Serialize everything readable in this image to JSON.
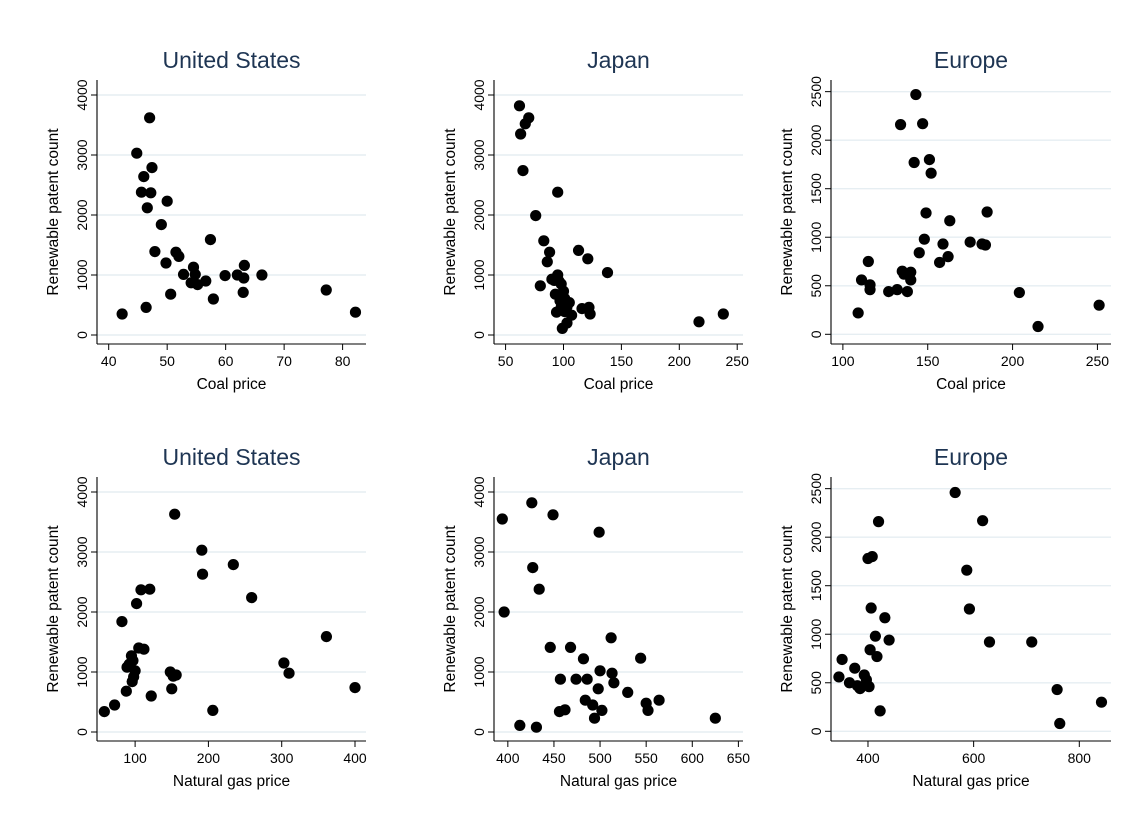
{
  "colors": {
    "background": "#ffffff",
    "title": "#1e3553",
    "gridline": "#e6eef2",
    "marker": "#000000"
  },
  "chart_data": [
    {
      "type": "scatter",
      "title": "United States",
      "xlabel": "Coal price",
      "ylabel": "Renewable patent count",
      "xlim": [
        38,
        84
      ],
      "ylim": [
        -150,
        4250
      ],
      "xticks": [
        40,
        50,
        60,
        70,
        80
      ],
      "yticks": [
        0,
        1000,
        2000,
        3000,
        4000
      ],
      "grid": true,
      "series": [
        {
          "x": [
            42.3,
            44.8,
            45.6,
            46.0,
            46.4,
            46.6,
            47.0,
            47.2,
            47.4,
            47.9,
            49.0,
            49.8,
            50.0,
            50.6,
            51.5,
            52.0,
            52.8,
            54.1,
            54.5,
            54.8,
            55.2,
            56.6,
            57.4,
            57.9,
            59.9,
            62.0,
            63.0,
            63.1,
            63.2,
            66.2,
            77.2,
            82.2
          ],
          "y": [
            350,
            3030,
            2380,
            2640,
            460,
            2120,
            3620,
            2370,
            2790,
            1390,
            1840,
            1200,
            2230,
            680,
            1380,
            1310,
            1010,
            870,
            1130,
            1010,
            840,
            900,
            1590,
            600,
            990,
            1000,
            710,
            950,
            1160,
            1000,
            750,
            380
          ]
        }
      ]
    },
    {
      "type": "scatter",
      "title": "Japan",
      "xlabel": "Coal price",
      "ylabel": "Renewable patent count",
      "xlim": [
        40,
        255
      ],
      "ylim": [
        -150,
        4250
      ],
      "xticks": [
        50,
        100,
        150,
        200,
        250
      ],
      "yticks": [
        0,
        1000,
        2000,
        3000,
        4000
      ],
      "grid": true,
      "series": [
        {
          "x": [
            62,
            63,
            65,
            67,
            70,
            76,
            80,
            83,
            86,
            88,
            90,
            92,
            93,
            94,
            95,
            95,
            96,
            97,
            98,
            98,
            99,
            100,
            101,
            101,
            103,
            103,
            105,
            107,
            113,
            116,
            121,
            122,
            123,
            138,
            217,
            238
          ],
          "y": [
            3820,
            3350,
            2740,
            3520,
            3620,
            1990,
            820,
            1570,
            1220,
            1380,
            930,
            910,
            680,
            380,
            2380,
            1000,
            900,
            570,
            460,
            850,
            110,
            730,
            610,
            390,
            200,
            470,
            540,
            330,
            1410,
            440,
            1270,
            460,
            350,
            1040,
            220,
            350
          ]
        }
      ]
    },
    {
      "type": "scatter",
      "title": "Europe",
      "xlabel": "Coal price",
      "ylabel": "Renewable patent count",
      "xlim": [
        93,
        258
      ],
      "ylim": [
        -100,
        2620
      ],
      "xticks": [
        100,
        150,
        200,
        250
      ],
      "yticks": [
        0,
        500,
        1000,
        1500,
        2000,
        2500
      ],
      "grid": true,
      "series": [
        {
          "x": [
            109,
            111,
            115,
            116,
            116,
            127,
            132,
            134,
            135,
            136,
            138,
            140,
            140,
            142,
            143,
            145,
            147,
            148,
            149,
            151,
            152,
            157,
            159,
            162,
            163,
            175,
            182,
            184,
            185,
            204,
            215,
            251
          ],
          "y": [
            220,
            560,
            750,
            460,
            510,
            440,
            460,
            2160,
            650,
            620,
            440,
            560,
            640,
            1770,
            2470,
            840,
            2170,
            980,
            1250,
            1800,
            1660,
            740,
            930,
            800,
            1170,
            950,
            930,
            920,
            1260,
            430,
            80,
            300
          ]
        }
      ]
    },
    {
      "type": "scatter",
      "title": "United States",
      "xlabel": "Natural gas price",
      "ylabel": "Renewable patent count",
      "xlim": [
        48,
        415
      ],
      "ylim": [
        -150,
        4250
      ],
      "xticks": [
        100,
        200,
        300,
        400
      ],
      "yticks": [
        0,
        1000,
        2000,
        3000,
        4000
      ],
      "grid": true,
      "series": [
        {
          "x": [
            58,
            72,
            82,
            88,
            89,
            92,
            95,
            96,
            97,
            98,
            100,
            102,
            105,
            108,
            112,
            120,
            122,
            148,
            150,
            152,
            154,
            156,
            191,
            192,
            206,
            234,
            259,
            303,
            310,
            361,
            400
          ],
          "y": [
            340,
            450,
            1840,
            680,
            1080,
            1130,
            1270,
            840,
            1190,
            920,
            1020,
            2140,
            1400,
            2370,
            1380,
            2380,
            600,
            1000,
            720,
            930,
            3630,
            950,
            3030,
            2630,
            360,
            2790,
            2240,
            1150,
            980,
            1590,
            740
          ]
        }
      ]
    },
    {
      "type": "scatter",
      "title": "Japan",
      "xlabel": "Natural gas price",
      "ylabel": "Renewable patent count",
      "xlim": [
        385,
        655
      ],
      "ylim": [
        -150,
        4250
      ],
      "xticks": [
        400,
        450,
        500,
        550,
        600,
        650
      ],
      "yticks": [
        0,
        1000,
        2000,
        3000,
        4000
      ],
      "grid": true,
      "series": [
        {
          "x": [
            394,
            396,
            413,
            426,
            427,
            431,
            434,
            446,
            449,
            456,
            457,
            462,
            468,
            474,
            482,
            484,
            486,
            492,
            494,
            498,
            499,
            500,
            502,
            512,
            513,
            515,
            530,
            544,
            550,
            552,
            564,
            625
          ],
          "y": [
            3550,
            2000,
            110,
            3820,
            2740,
            80,
            2380,
            1410,
            3620,
            340,
            880,
            370,
            1410,
            880,
            1220,
            530,
            880,
            450,
            230,
            720,
            3330,
            1020,
            360,
            1570,
            980,
            820,
            660,
            1230,
            480,
            360,
            530,
            230
          ]
        }
      ]
    },
    {
      "type": "scatter",
      "title": "Europe",
      "xlabel": "Natural gas price",
      "ylabel": "Renewable patent count",
      "xlim": [
        330,
        860
      ],
      "ylim": [
        -100,
        2620
      ],
      "xticks": [
        400,
        600,
        800
      ],
      "yticks": [
        0,
        500,
        1000,
        1500,
        2000,
        2500
      ],
      "grid": true,
      "series": [
        {
          "x": [
            345,
            351,
            365,
            375,
            380,
            385,
            393,
            397,
            400,
            402,
            404,
            406,
            408,
            414,
            417,
            420,
            423,
            432,
            440,
            565,
            587,
            592,
            617,
            630,
            710,
            758,
            763,
            842
          ],
          "y": [
            560,
            740,
            500,
            650,
            470,
            440,
            580,
            530,
            1780,
            460,
            840,
            1270,
            1800,
            980,
            770,
            2160,
            210,
            1170,
            940,
            2460,
            1660,
            1260,
            2170,
            920,
            920,
            430,
            80,
            300
          ]
        }
      ]
    }
  ]
}
